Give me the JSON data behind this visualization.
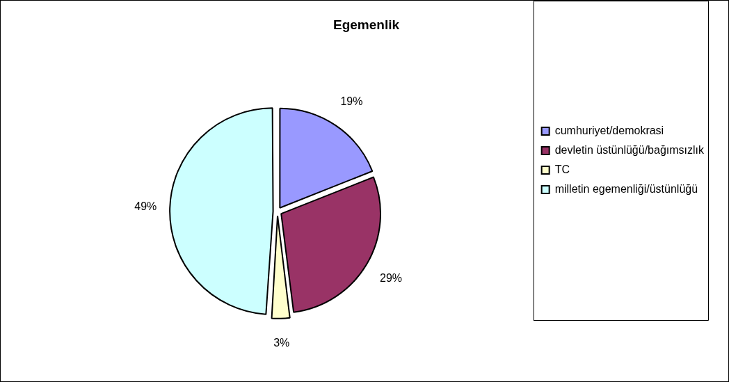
{
  "chart_data": {
    "type": "pie",
    "title": "Egemenlik",
    "categories": [
      "cumhuriyet/demokrasi",
      "devletin üstünlüğü/bağımsızlık",
      "TC",
      "milletin egemenliği/üstünlüğü"
    ],
    "values": [
      19,
      29,
      3,
      49
    ],
    "colors": [
      "#9999ff",
      "#993366",
      "#ffffcc",
      "#ccffff"
    ],
    "value_labels": [
      "19%",
      "29%",
      "3%",
      "49%"
    ],
    "legend": "right"
  }
}
